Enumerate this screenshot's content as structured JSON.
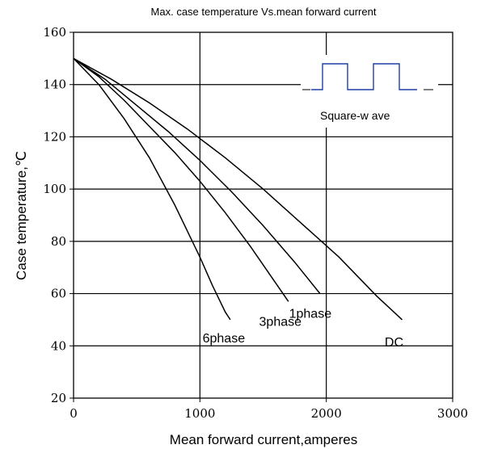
{
  "chart_data": {
    "type": "line",
    "title": "Max. case temperature Vs.mean forward current",
    "xlabel": "Mean forward  current,amperes",
    "ylabel": "Case temperature,℃",
    "xlim": [
      0,
      3000
    ],
    "ylim": [
      20,
      160
    ],
    "xticks": [
      0,
      1000,
      2000,
      3000
    ],
    "yticks": [
      20,
      40,
      60,
      80,
      100,
      120,
      140,
      160
    ],
    "grid": true,
    "series": [
      {
        "name": "6phase",
        "x": [
          0,
          200,
          400,
          600,
          800,
          1000,
          1100,
          1200,
          1240
        ],
        "y": [
          150,
          140,
          127,
          112,
          94,
          74,
          63,
          53,
          50
        ]
      },
      {
        "name": "3phase",
        "x": [
          0,
          200,
          400,
          600,
          800,
          1000,
          1200,
          1400,
          1600,
          1700
        ],
        "y": [
          150,
          143,
          134,
          124,
          114,
          103,
          91,
          78,
          64,
          57
        ]
      },
      {
        "name": "1phase",
        "x": [
          0,
          250,
          500,
          750,
          1000,
          1250,
          1500,
          1750,
          1950
        ],
        "y": [
          150,
          142,
          132,
          122,
          111,
          99,
          86,
          72,
          60
        ]
      },
      {
        "name": "DC",
        "x": [
          0,
          300,
          600,
          900,
          1200,
          1500,
          1800,
          2100,
          2400,
          2600
        ],
        "y": [
          150,
          142,
          133,
          123,
          112,
          100,
          87,
          74,
          59,
          50
        ]
      }
    ],
    "annotations": {
      "inset_label": "Square-w ave"
    }
  }
}
